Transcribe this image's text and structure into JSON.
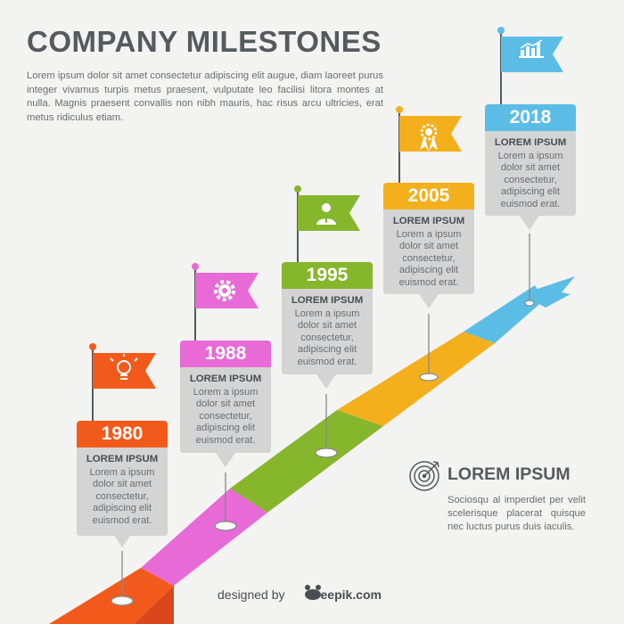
{
  "header": {
    "title": "COMPANY MILESTONES",
    "intro": "Lorem ipsum dolor sit amet consectetur adipiscing elit augue, diam laoreet purus integer vivamus turpis metus praesent, vulputate leo facilisi litora montes at nulla. Magnis praesent convallis non nibh mauris, hac risus arcu ultricies, erat metus ridiculus etiam."
  },
  "milestones": [
    {
      "year": "1980",
      "heading": "LOREM IPSUM",
      "text": "Lorem a ipsum dolor sit amet consectetur, adipiscing elit euismod erat.",
      "color": "#f25a1c",
      "icon": "lightbulb-icon"
    },
    {
      "year": "1988",
      "heading": "LOREM IPSUM",
      "text": "Lorem a ipsum dolor sit amet consectetur, adipiscing elit euismod erat.",
      "color": "#e86ad6",
      "icon": "gear-icon"
    },
    {
      "year": "1995",
      "heading": "LOREM IPSUM",
      "text": "Lorem a ipsum dolor sit amet consectetur, adipiscing elit euismod erat.",
      "color": "#86b62c",
      "icon": "person-icon"
    },
    {
      "year": "2005",
      "heading": "LOREM IPSUM",
      "text": "Lorem a ipsum dolor sit amet consectetur, adipiscing elit euismod erat.",
      "color": "#f3b01c",
      "icon": "award-ribbon-icon"
    },
    {
      "year": "2018",
      "heading": "LOREM IPSUM",
      "text": "Lorem a ipsum dolor sit amet consectetur, adipiscing elit euismod erat.",
      "color": "#5bbde6",
      "icon": "bar-chart-icon"
    }
  ],
  "callout": {
    "icon": "target-icon",
    "title": "LOREM IPSUM",
    "text": "Sociosqu al imperdiet per velit scelerisque placerat quisque nec luctus purus duis iaculis."
  },
  "credit": {
    "prefix": "designed by",
    "brand": "freepik.com",
    "icon": "freepik-logo-icon"
  },
  "colors": {
    "road_red": "#f25a1c",
    "road_pink": "#e86ad6",
    "road_green": "#86b62c",
    "road_yellow": "#f3b01c",
    "road_blue": "#5bbde6",
    "card_grey": "#d4d4d4",
    "text_dark": "#555a5f"
  }
}
